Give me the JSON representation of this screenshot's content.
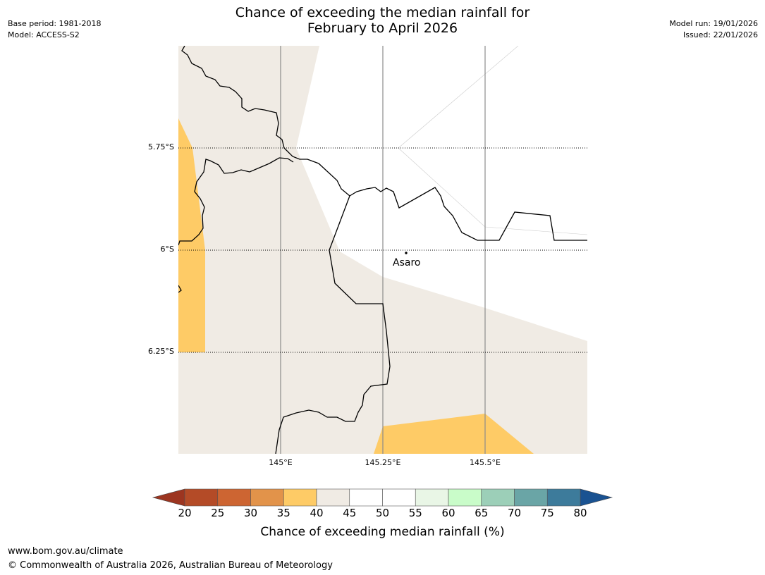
{
  "header": {
    "title_line1": "Chance of exceeding the median rainfall for",
    "title_line2": "February to April 2026",
    "base_period": "Base period: 1981-2018",
    "model": "Model: ACCESS-S2",
    "model_run": "Model run: 19/01/2026",
    "issued": "Issued: 22/01/2026"
  },
  "map": {
    "lat_ticks": [
      "5.75°S",
      "6°S",
      "6.25°S"
    ],
    "lon_ticks": [
      "145°E",
      "145.25°E",
      "145.5°E"
    ],
    "place_label": "Asaro",
    "colors": {
      "band_35_40": "#fecb66",
      "band_40_45": "#f0ebe4",
      "band_45_55": "#ffffff",
      "border": "#000000",
      "gridline": "#8c8c8c"
    }
  },
  "colorbar": {
    "ticks": [
      "20",
      "25",
      "30",
      "35",
      "40",
      "45",
      "50",
      "55",
      "60",
      "65",
      "70",
      "75",
      "80"
    ],
    "label": "Chance of exceeding median rainfall (%)",
    "low_extend_color": "#9c3520",
    "high_extend_color": "#1a5291",
    "segment_colors": [
      "#b44b27",
      "#cd6532",
      "#e2934a",
      "#fecb66",
      "#f0ebe4",
      "#ffffff",
      "#ffffff",
      "#e9f6e6",
      "#c9fcc9",
      "#9ccfb8",
      "#6aa5a6",
      "#3d7b9b"
    ]
  },
  "footer": {
    "url": "www.bom.gov.au/climate",
    "copyright": "© Commonwealth of Australia 2026, Australian Bureau of Meteorology"
  }
}
